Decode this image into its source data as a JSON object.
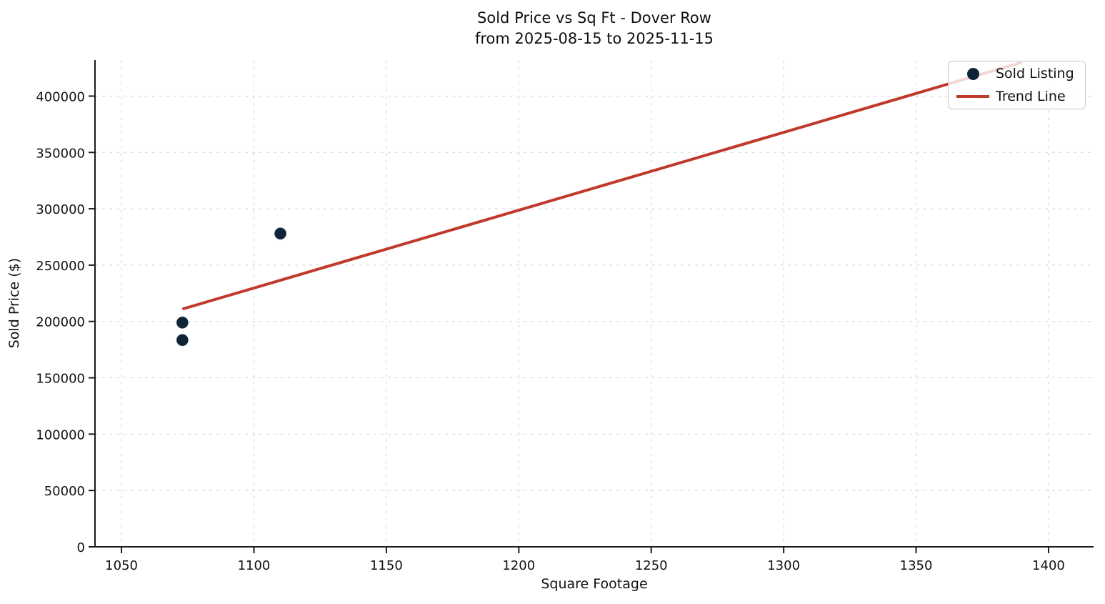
{
  "chart_data": {
    "type": "scatter",
    "title": "Sold Price vs Sq Ft - Dover Row\nfrom 2025-08-15 to 2025-11-15",
    "title_lines": [
      "Sold Price vs Sq Ft - Dover Row",
      "from 2025-08-15 to 2025-11-15"
    ],
    "xlabel": "Square Footage",
    "ylabel": "Sold Price ($)",
    "xlim": [
      1040,
      1417
    ],
    "ylim": [
      0,
      432000
    ],
    "x_ticks": [
      1050,
      1100,
      1150,
      1200,
      1250,
      1300,
      1350,
      1400
    ],
    "y_ticks": [
      0,
      50000,
      100000,
      150000,
      200000,
      250000,
      300000,
      350000,
      400000
    ],
    "grid": true,
    "grid_style": "dashed",
    "legend_position": "upper right",
    "series": [
      {
        "name": "Sold Listing",
        "kind": "scatter",
        "color": "#0e2439",
        "points": [
          [
            1073,
            199000
          ],
          [
            1073,
            183500
          ],
          [
            1110,
            278000
          ]
        ]
      },
      {
        "name": "Trend Line",
        "kind": "line",
        "color": "#c0392b",
        "points": [
          [
            1073,
            211000
          ],
          [
            1390,
            430000
          ]
        ]
      }
    ]
  },
  "legend": {
    "items": [
      {
        "label": "Sold Listing",
        "marker": "dot",
        "color": "#0e2439"
      },
      {
        "label": "Trend Line",
        "marker": "line",
        "color": "#c0392b"
      }
    ]
  },
  "colors": {
    "background": "#ffffff",
    "scatter": "#0e2439",
    "trend": "#c0392b",
    "grid": "#d4d4d4",
    "text": "#111111",
    "spine": "#1a1a1a"
  }
}
